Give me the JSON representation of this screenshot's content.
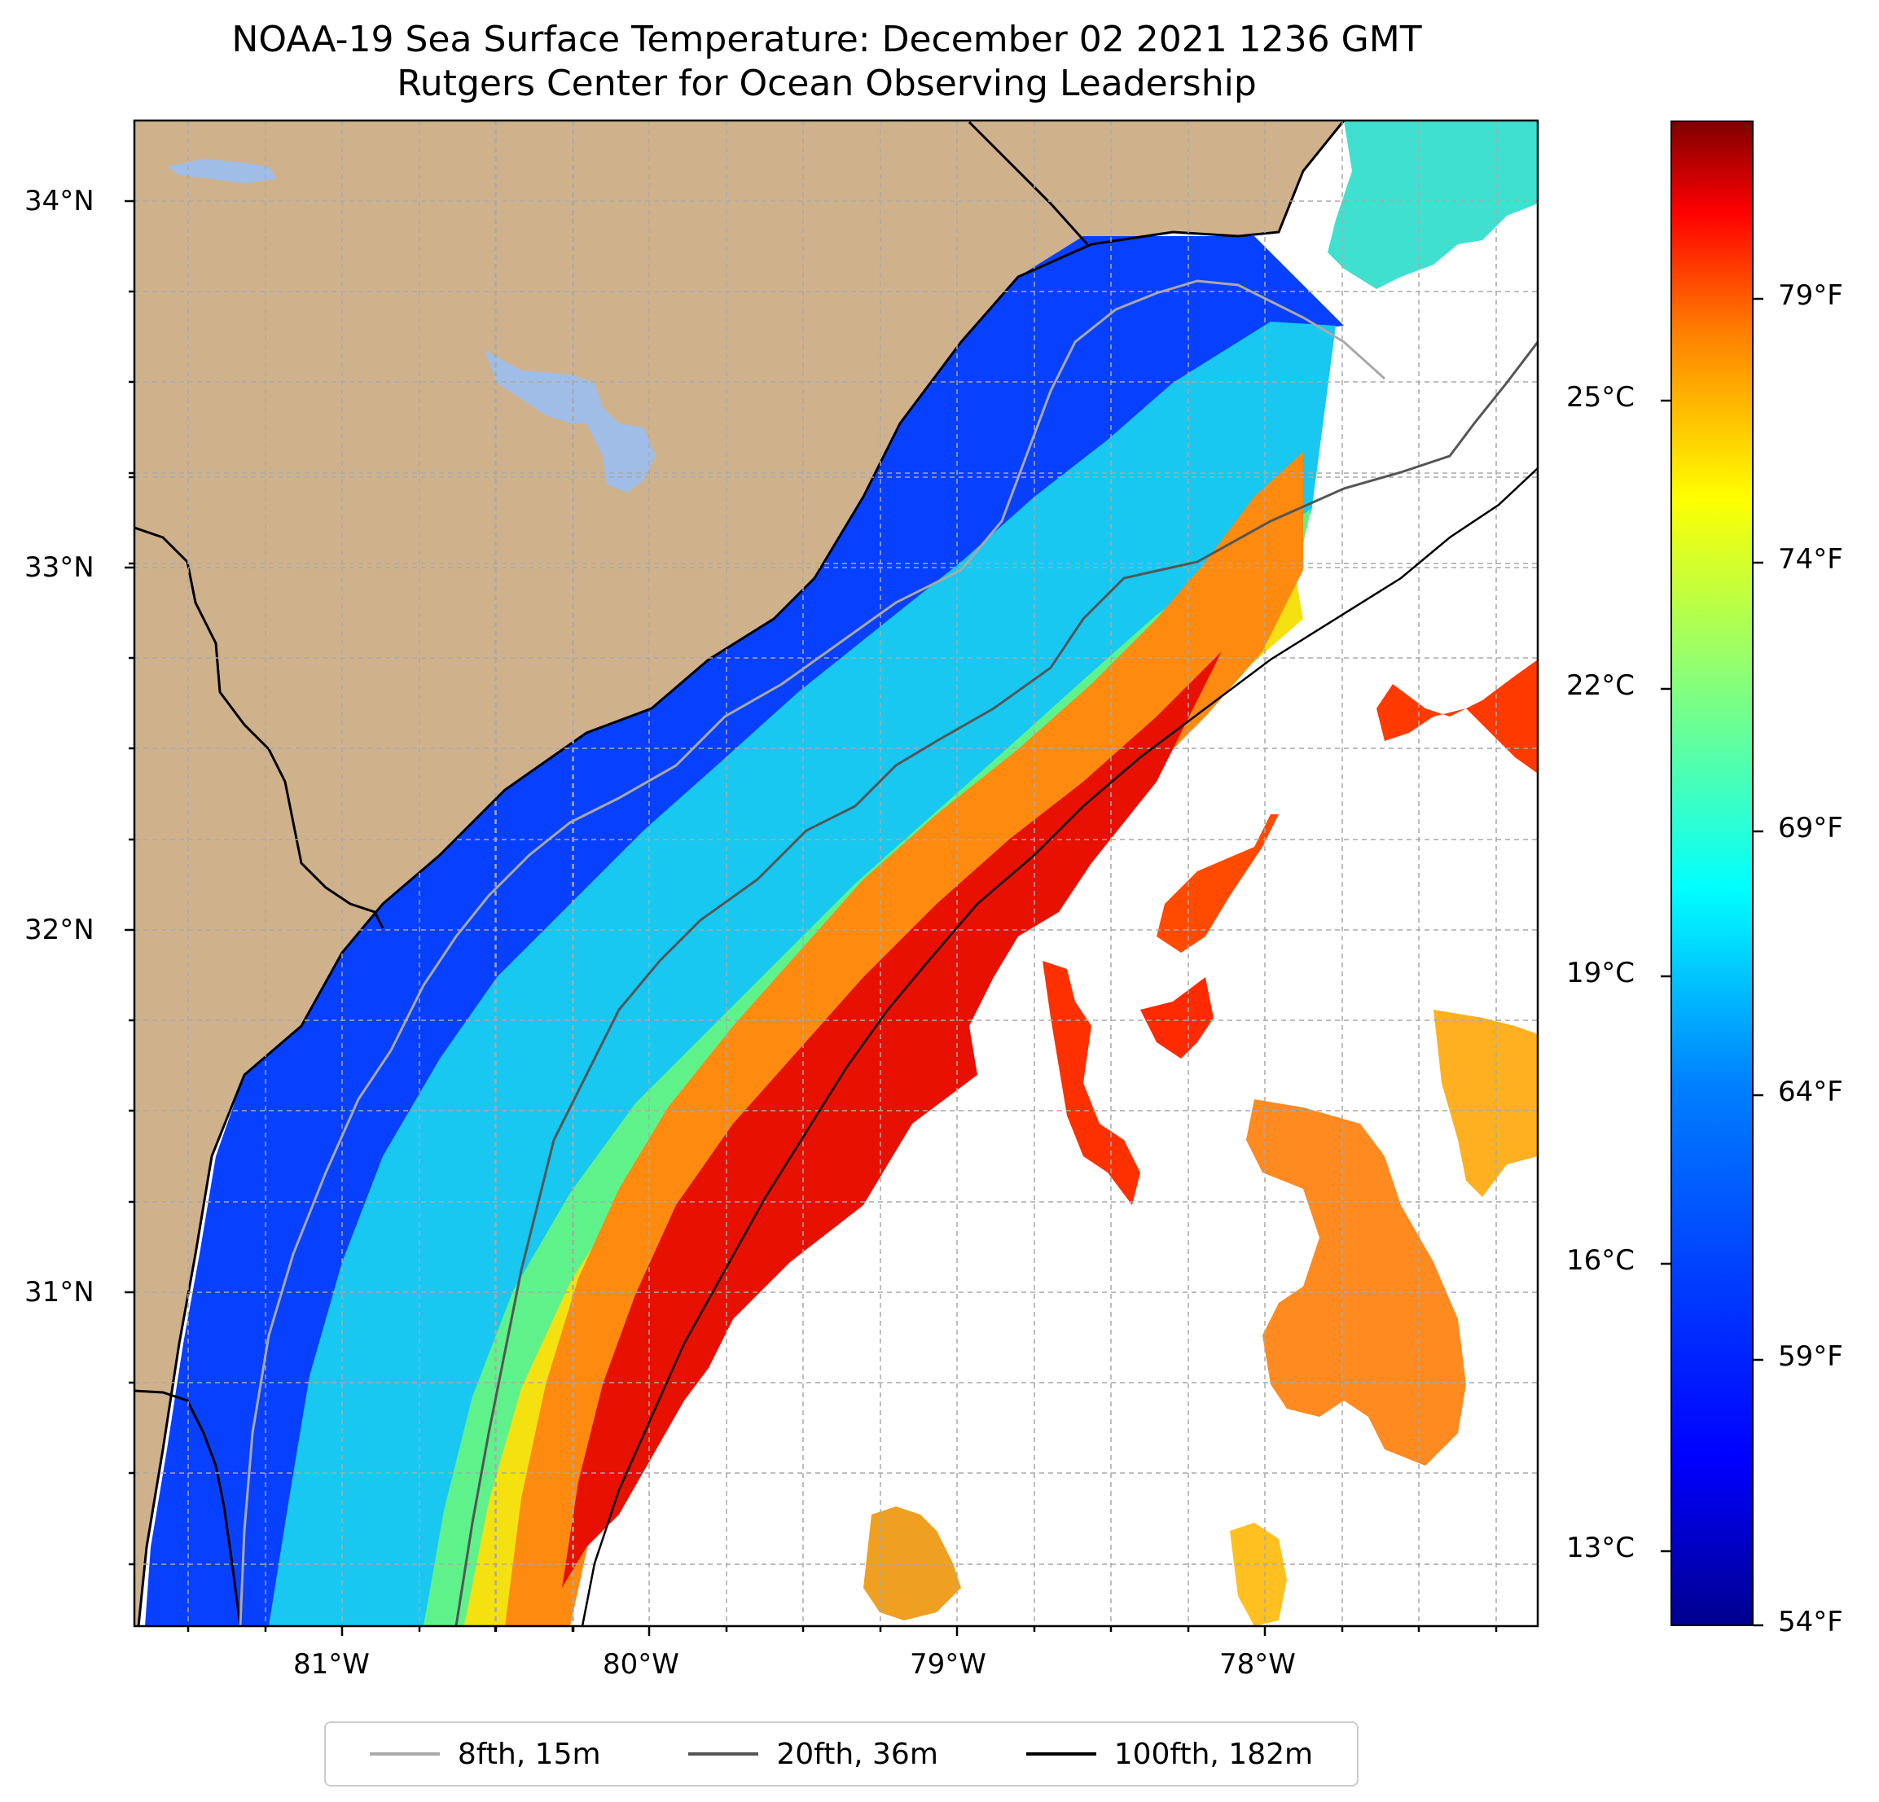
{
  "title": {
    "line1": "NOAA-19 Sea Surface Temperature: December 02 2021 1236 GMT",
    "line2": "Rutgers Center for Ocean Observing Leadership"
  },
  "colors": {
    "land": "#cfb28c",
    "lake": "#9fbde6",
    "frame": "#000000",
    "grid": "#a9a9a9",
    "isobath_15m": "#a9a9a9",
    "isobath_36m": "#555555",
    "isobath_182m": "#000000",
    "colormap": "jet"
  },
  "map": {
    "lat_labels": [
      "34°N",
      "33°N",
      "32°N",
      "31°N"
    ],
    "lon_labels": [
      "81°W",
      "80°W",
      "79°W",
      "78°W"
    ]
  },
  "legend": {
    "items": [
      {
        "label": "8fth, 15m",
        "color": "#a9a9a9"
      },
      {
        "label": "20fth, 36m",
        "color": "#555555"
      },
      {
        "label": "100fth, 182m",
        "color": "#000000"
      }
    ]
  },
  "colorbar": {
    "colormap": "jet",
    "celsius_labels": [
      "25°C",
      "22°C",
      "19°C",
      "16°C",
      "13°C"
    ],
    "fahrenheit_labels": [
      "79°F",
      "74°F",
      "69°F",
      "64°F",
      "59°F",
      "54°F"
    ],
    "range_F": [
      54,
      83
    ]
  }
}
